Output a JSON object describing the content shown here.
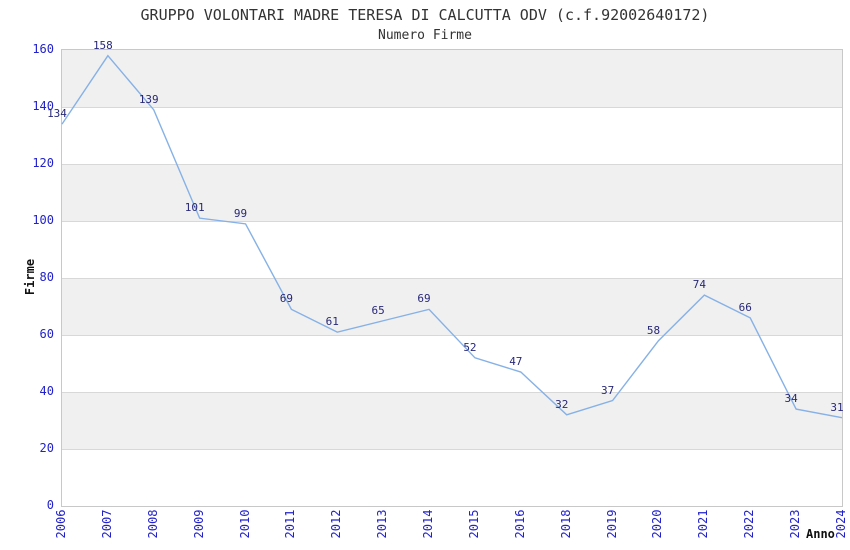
{
  "chart_data": {
    "type": "line",
    "title": "GRUPPO VOLONTARI MADRE TERESA DI CALCUTTA ODV (c.f.92002640172)",
    "subtitle": "Numero Firme",
    "xlabel": "Anno",
    "ylabel": "Firme",
    "categories": [
      "2006",
      "2007",
      "2008",
      "2009",
      "2010",
      "2011",
      "2012",
      "2013",
      "2014",
      "2015",
      "2016",
      "2018",
      "2019",
      "2020",
      "2021",
      "2022",
      "2023",
      "2024"
    ],
    "values": [
      134,
      158,
      139,
      101,
      99,
      69,
      61,
      65,
      69,
      52,
      47,
      32,
      37,
      58,
      74,
      66,
      34,
      31
    ],
    "ylim": [
      0,
      160
    ],
    "ytick_step": 20,
    "grid": "horizontal-bands-alternating",
    "legend_position": "none",
    "point_labels_visible": true,
    "colors": {
      "line": "#86b1e6",
      "tick_label": "#2222cc",
      "value_label": "#282878",
      "band": "#f0f0f0",
      "gridline": "#d8d8d8",
      "plot_border": "#c8c8c8",
      "title_text": "#333333",
      "axis_label_text": "#111111",
      "background": "#ffffff"
    }
  }
}
